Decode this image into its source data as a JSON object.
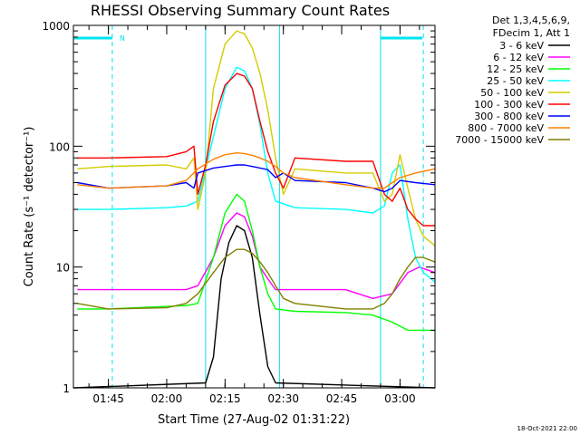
{
  "chart_data": {
    "type": "line",
    "title": "RHESSI Observing Summary Count Rates",
    "xlabel": "Start Time (27-Aug-02 01:31:22)",
    "ylabel": "Count Rate (s⁻¹ detector⁻¹)",
    "y_scale": "log",
    "ylim": [
      1,
      1000
    ],
    "y_ticks": [
      1,
      10,
      100,
      1000
    ],
    "y_tick_labels": [
      "1",
      "10",
      "100",
      "1000"
    ],
    "x_ticks": [
      "01:45",
      "02:00",
      "02:15",
      "02:30",
      "02:45",
      "03:00"
    ],
    "xlim": [
      "01:36",
      "03:09"
    ],
    "grid": false,
    "legend_position": "right",
    "legend_header": [
      "Det 1,3,4,5,6,9,",
      "FDecim 1, Att 1"
    ],
    "timestamp": "18-Oct-2021 22:00",
    "eclipse_flag_label": "N",
    "series": [
      {
        "name": "3 - 6 keV",
        "color": "#000000",
        "points": [
          [
            "01:36",
            1.0
          ],
          [
            "02:10",
            1.1
          ],
          [
            "02:12",
            1.8
          ],
          [
            "02:14",
            8
          ],
          [
            "02:16",
            16
          ],
          [
            "02:18",
            22
          ],
          [
            "02:20",
            20
          ],
          [
            "02:22",
            12
          ],
          [
            "02:24",
            4
          ],
          [
            "02:26",
            1.5
          ],
          [
            "02:28",
            1.1
          ],
          [
            "03:09",
            1.0
          ]
        ]
      },
      {
        "name": "6 - 12 keV",
        "color": "#ff00ff",
        "points": [
          [
            "01:37",
            6.5
          ],
          [
            "01:45",
            6.5
          ],
          [
            "01:50",
            6.5
          ],
          [
            "02:05",
            6.5
          ],
          [
            "02:08",
            7
          ],
          [
            "02:12",
            12
          ],
          [
            "02:15",
            22
          ],
          [
            "02:18",
            28
          ],
          [
            "02:20",
            26
          ],
          [
            "02:22",
            18
          ],
          [
            "02:24",
            10
          ],
          [
            "02:26",
            8
          ],
          [
            "02:28",
            6.5
          ],
          [
            "02:33",
            6.5
          ],
          [
            "02:40",
            6.5
          ],
          [
            "02:46",
            6.5
          ],
          [
            "02:53",
            5.5
          ],
          [
            "02:58",
            6
          ],
          [
            "03:02",
            9
          ],
          [
            "03:05",
            10
          ],
          [
            "03:09",
            9
          ]
        ]
      },
      {
        "name": "12 - 25 keV",
        "color": "#00ff00",
        "points": [
          [
            "01:37",
            4.5
          ],
          [
            "01:45",
            4.5
          ],
          [
            "02:05",
            4.8
          ],
          [
            "02:08",
            5
          ],
          [
            "02:12",
            12
          ],
          [
            "02:15",
            28
          ],
          [
            "02:18",
            40
          ],
          [
            "02:20",
            35
          ],
          [
            "02:22",
            20
          ],
          [
            "02:24",
            10
          ],
          [
            "02:26",
            6
          ],
          [
            "02:28",
            4.5
          ],
          [
            "02:33",
            4.3
          ],
          [
            "02:46",
            4.2
          ],
          [
            "02:53",
            4
          ],
          [
            "02:58",
            3.5
          ],
          [
            "03:02",
            3
          ],
          [
            "03:05",
            3
          ],
          [
            "03:09",
            3
          ]
        ]
      },
      {
        "name": "25 - 50 keV",
        "color": "#00ffff",
        "points": [
          [
            "01:37",
            30
          ],
          [
            "01:45",
            30
          ],
          [
            "02:00",
            31
          ],
          [
            "02:05",
            32
          ],
          [
            "02:08",
            35
          ],
          [
            "02:12",
            120
          ],
          [
            "02:15",
            300
          ],
          [
            "02:18",
            450
          ],
          [
            "02:20",
            420
          ],
          [
            "02:22",
            300
          ],
          [
            "02:24",
            150
          ],
          [
            "02:26",
            60
          ],
          [
            "02:28",
            35
          ],
          [
            "02:33",
            31
          ],
          [
            "02:46",
            30
          ],
          [
            "02:53",
            28
          ],
          [
            "02:56",
            32
          ],
          [
            "02:58",
            60
          ],
          [
            "03:00",
            70
          ],
          [
            "03:02",
            25
          ],
          [
            "03:04",
            12
          ],
          [
            "03:06",
            9
          ],
          [
            "03:08",
            8
          ],
          [
            "03:09",
            7.5
          ]
        ]
      },
      {
        "name": "50 - 100 keV",
        "color": "#d4cc00",
        "points": [
          [
            "01:37",
            65
          ],
          [
            "01:45",
            68
          ],
          [
            "02:00",
            70
          ],
          [
            "02:05",
            65
          ],
          [
            "02:07",
            80
          ],
          [
            "02:08",
            30
          ],
          [
            "02:10",
            60
          ],
          [
            "02:12",
            300
          ],
          [
            "02:15",
            700
          ],
          [
            "02:18",
            900
          ],
          [
            "02:20",
            850
          ],
          [
            "02:22",
            650
          ],
          [
            "02:24",
            400
          ],
          [
            "02:26",
            200
          ],
          [
            "02:28",
            80
          ],
          [
            "02:30",
            40
          ],
          [
            "02:33",
            65
          ],
          [
            "02:46",
            60
          ],
          [
            "02:53",
            60
          ],
          [
            "02:56",
            35
          ],
          [
            "02:58",
            40
          ],
          [
            "03:00",
            85
          ],
          [
            "03:02",
            45
          ],
          [
            "03:04",
            25
          ],
          [
            "03:06",
            18
          ],
          [
            "03:09",
            15
          ]
        ]
      },
      {
        "name": "100 - 300 keV",
        "color": "#ff0000",
        "points": [
          [
            "01:37",
            80
          ],
          [
            "01:45",
            80
          ],
          [
            "02:00",
            82
          ],
          [
            "02:05",
            90
          ],
          [
            "02:07",
            100
          ],
          [
            "02:08",
            40
          ],
          [
            "02:10",
            70
          ],
          [
            "02:12",
            160
          ],
          [
            "02:15",
            320
          ],
          [
            "02:18",
            400
          ],
          [
            "02:20",
            380
          ],
          [
            "02:22",
            300
          ],
          [
            "02:24",
            160
          ],
          [
            "02:26",
            90
          ],
          [
            "02:28",
            60
          ],
          [
            "02:30",
            45
          ],
          [
            "02:33",
            80
          ],
          [
            "02:46",
            75
          ],
          [
            "02:53",
            75
          ],
          [
            "02:56",
            40
          ],
          [
            "02:58",
            35
          ],
          [
            "03:00",
            45
          ],
          [
            "03:02",
            30
          ],
          [
            "03:04",
            25
          ],
          [
            "03:06",
            22
          ],
          [
            "03:09",
            22
          ]
        ]
      },
      {
        "name": "300 - 800 keV",
        "color": "#0000ff",
        "points": [
          [
            "01:37",
            50
          ],
          [
            "01:45",
            45
          ],
          [
            "02:00",
            47
          ],
          [
            "02:05",
            50
          ],
          [
            "02:07",
            45
          ],
          [
            "02:08",
            60
          ],
          [
            "02:12",
            66
          ],
          [
            "02:15",
            68
          ],
          [
            "02:18",
            70
          ],
          [
            "02:20",
            70
          ],
          [
            "02:22",
            68
          ],
          [
            "02:24",
            66
          ],
          [
            "02:26",
            64
          ],
          [
            "02:28",
            55
          ],
          [
            "02:30",
            60
          ],
          [
            "02:33",
            52
          ],
          [
            "02:46",
            50
          ],
          [
            "02:53",
            45
          ],
          [
            "02:56",
            42
          ],
          [
            "02:58",
            45
          ],
          [
            "03:00",
            52
          ],
          [
            "03:04",
            50
          ],
          [
            "03:09",
            48
          ]
        ]
      },
      {
        "name": "800 - 7000 keV",
        "color": "#ff8000",
        "points": [
          [
            "01:37",
            48
          ],
          [
            "01:45",
            45
          ],
          [
            "02:00",
            47
          ],
          [
            "02:05",
            52
          ],
          [
            "02:08",
            65
          ],
          [
            "02:12",
            78
          ],
          [
            "02:15",
            85
          ],
          [
            "02:18",
            88
          ],
          [
            "02:20",
            87
          ],
          [
            "02:22",
            84
          ],
          [
            "02:24",
            80
          ],
          [
            "02:26",
            75
          ],
          [
            "02:28",
            68
          ],
          [
            "02:30",
            60
          ],
          [
            "02:33",
            55
          ],
          [
            "02:46",
            48
          ],
          [
            "02:53",
            45
          ],
          [
            "02:56",
            45
          ],
          [
            "02:58",
            50
          ],
          [
            "03:00",
            55
          ],
          [
            "03:04",
            60
          ],
          [
            "03:09",
            65
          ]
        ]
      },
      {
        "name": "7000 - 15000 keV",
        "color": "#808000",
        "points": [
          [
            "01:37",
            5
          ],
          [
            "01:45",
            4.5
          ],
          [
            "02:00",
            4.6
          ],
          [
            "02:05",
            5
          ],
          [
            "02:08",
            6
          ],
          [
            "02:12",
            9
          ],
          [
            "02:15",
            12
          ],
          [
            "02:18",
            14
          ],
          [
            "02:20",
            14
          ],
          [
            "02:22",
            13
          ],
          [
            "02:24",
            11
          ],
          [
            "02:26",
            9
          ],
          [
            "02:28",
            7
          ],
          [
            "02:30",
            5.5
          ],
          [
            "02:33",
            5
          ],
          [
            "02:46",
            4.5
          ],
          [
            "02:53",
            4.5
          ],
          [
            "02:56",
            5
          ],
          [
            "02:58",
            6
          ],
          [
            "03:00",
            8
          ],
          [
            "03:02",
            10
          ],
          [
            "03:04",
            12
          ],
          [
            "03:06",
            12
          ],
          [
            "03:09",
            11
          ]
        ]
      }
    ],
    "attenuator_markers": [
      "02:10",
      "02:29",
      "02:55"
    ],
    "eclipse_markers": [
      "01:46",
      "03:06"
    ]
  }
}
